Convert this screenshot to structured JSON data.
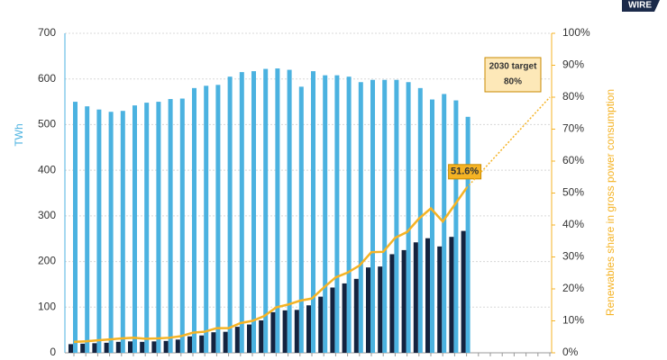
{
  "logo": "WIRE",
  "chart_data": {
    "type": "bar-line",
    "ylabel": "TWh",
    "y2label": "Renewables share in gross power consumption",
    "categories": [
      null,
      null,
      null,
      null,
      null,
      null,
      null,
      null,
      null,
      null,
      null,
      null,
      null,
      null,
      null,
      null,
      null,
      null,
      null,
      null,
      null,
      null,
      null,
      null,
      null,
      null,
      null,
      null,
      null,
      null,
      null,
      null,
      null,
      null,
      null,
      null,
      null,
      null,
      null,
      null,
      null
    ],
    "series": [
      {
        "color": "#4bb2e0",
        "values": [
          550,
          540,
          533,
          528,
          530,
          542,
          548,
          550,
          556,
          557,
          580,
          585,
          587,
          605,
          615,
          617,
          622,
          623,
          620,
          583,
          617,
          608,
          608,
          605,
          593,
          598,
          598,
          598,
          593,
          580,
          555,
          567,
          553,
          517,
          null,
          null,
          null,
          null,
          null,
          null,
          null
        ]
      },
      {
        "color": "#14233f",
        "values": [
          19,
          20,
          21,
          22,
          24,
          25,
          24,
          25,
          26,
          29,
          36,
          38,
          45,
          46,
          57,
          62,
          71,
          89,
          93,
          94,
          104,
          123,
          143,
          152,
          162,
          187,
          189,
          216,
          225,
          242,
          251,
          233,
          254,
          267,
          null,
          null,
          null,
          null,
          null,
          null,
          null
        ]
      },
      {
        "color": "#f5b324",
        "axis": "y2",
        "values": [
          3.4,
          3.6,
          3.9,
          4.2,
          4.5,
          4.7,
          4.4,
          4.5,
          4.7,
          5.2,
          6.3,
          6.6,
          7.7,
          7.7,
          9.3,
          10.0,
          11.5,
          14.2,
          15.1,
          16.3,
          17.0,
          20.4,
          23.6,
          25.1,
          27.3,
          31.5,
          31.6,
          36.0,
          37.8,
          42.0,
          45.2,
          41.1,
          46.3,
          51.6,
          null,
          null,
          null,
          null,
          null,
          null,
          null
        ],
        "value_labels": [
          null,
          null,
          null,
          null,
          null,
          null,
          null,
          null,
          null,
          null,
          null,
          null,
          null,
          null,
          null,
          null,
          null,
          null,
          null,
          null,
          null,
          null,
          null,
          null,
          null,
          null,
          null,
          null,
          null,
          null,
          null,
          null,
          null,
          "51.6%",
          null,
          null,
          null,
          null,
          null,
          null,
          null
        ]
      }
    ],
    "target": {
      "index": 40,
      "value": 80,
      "labels": [
        "2030 target",
        "80%"
      ]
    },
    "ylim": [
      0,
      700
    ],
    "yticks": [
      0,
      100,
      200,
      300,
      400,
      500,
      600,
      700
    ],
    "y2lim": [
      0,
      100
    ],
    "y2ticks": [
      {
        "value": 0,
        "label": "0%"
      },
      {
        "value": 10,
        "label": "10%"
      },
      {
        "value": 20,
        "label": "20%"
      },
      {
        "value": 30,
        "label": "30%"
      },
      {
        "value": 40,
        "label": "40%"
      },
      {
        "value": 50,
        "label": "50%"
      },
      {
        "value": 60,
        "label": "60%"
      },
      {
        "value": 70,
        "label": "70%"
      },
      {
        "value": 80,
        "label": "80%"
      },
      {
        "value": 90,
        "label": "90%"
      },
      {
        "value": 100,
        "label": "100%"
      }
    ],
    "grid": true
  }
}
